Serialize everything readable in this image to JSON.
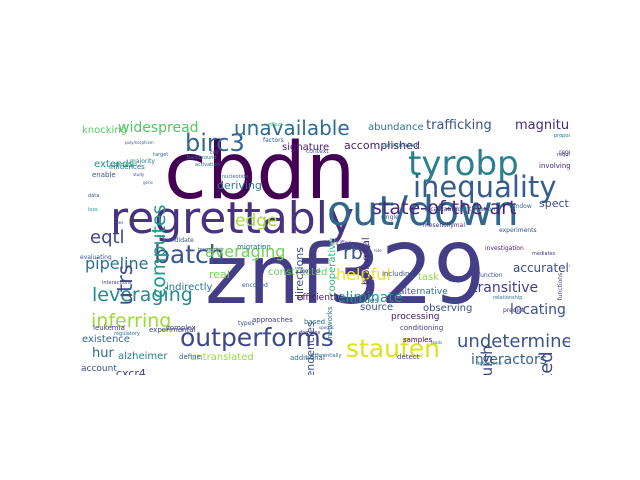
{
  "cloud": {
    "words": [
      {
        "t": "znf329",
        "c": "#433e85"
      },
      {
        "t": "cbdn",
        "c": "#440154"
      },
      {
        "t": "regrettably",
        "c": "#46327e"
      },
      {
        "t": "out/down",
        "c": "#30678d"
      },
      {
        "t": "tyrobp",
        "c": "#2b7f8e"
      },
      {
        "t": "inequality",
        "c": "#365c8d"
      },
      {
        "t": "batch",
        "c": "#39568c"
      },
      {
        "t": "outperforms",
        "c": "#3f4788"
      },
      {
        "t": "staufen",
        "c": "#dde318"
      },
      {
        "t": "state-of-the-art",
        "c": "#482777"
      },
      {
        "t": "unavailable",
        "c": "#2f6c8e"
      },
      {
        "t": "birc3",
        "c": "#31668e"
      },
      {
        "t": "leveraging",
        "c": "#238a8d"
      },
      {
        "t": "inferring",
        "c": "#9bd93c"
      },
      {
        "t": "pipeline",
        "c": "#2e6e8e"
      },
      {
        "t": "averaging",
        "c": "#73d055"
      },
      {
        "t": "undetermined",
        "c": "#3a538b"
      },
      {
        "t": "interactors",
        "c": "#33638d"
      },
      {
        "t": "simulated",
        "c": "#3e4989"
      },
      {
        "t": "utrs",
        "c": "#3d4e8a"
      },
      {
        "t": "eqtl",
        "c": "#404588"
      },
      {
        "t": "computes",
        "c": "#1f978b"
      },
      {
        "t": "widespread",
        "c": "#55c667"
      },
      {
        "t": "edge",
        "c": "#a5db36"
      },
      {
        "t": "rb1",
        "c": "#3b528b"
      },
      {
        "t": "helpful",
        "c": "#f1e51d"
      },
      {
        "t": "magnitude",
        "c": "#482979"
      },
      {
        "t": "eliminate",
        "c": "#1f988b"
      },
      {
        "t": "locating",
        "c": "#3b518b"
      },
      {
        "t": "transitive",
        "c": "#423f85"
      },
      {
        "t": "accurately",
        "c": "#3f4a8a"
      },
      {
        "t": "trafficking",
        "c": "#3b528b"
      },
      {
        "t": "accomplished",
        "c": "#482071"
      },
      {
        "t": "hur",
        "c": "#31688e"
      },
      {
        "t": "cxcr4",
        "c": "#414487"
      },
      {
        "t": "alzheimer",
        "c": "#25848e"
      },
      {
        "t": "untranslated",
        "c": "#9bd93c"
      },
      {
        "t": "distinguish",
        "c": "#3e4a89"
      },
      {
        "t": "signature",
        "c": "#481a6c"
      },
      {
        "t": "abundance",
        "c": "#2c728e"
      },
      {
        "t": "deriving",
        "c": "#2a788e"
      },
      {
        "t": "real",
        "c": "#7ad151"
      },
      {
        "t": "constructed",
        "c": "#6ccd5a"
      },
      {
        "t": "dependencies",
        "c": "#3b528b"
      },
      {
        "t": "task",
        "c": "#95d840"
      },
      {
        "t": "source",
        "c": "#39558c"
      },
      {
        "t": "observing",
        "c": "#3d4d8a"
      },
      {
        "t": "alternative",
        "c": "#2e6f8e"
      },
      {
        "t": "knocking",
        "c": "#5cc863"
      },
      {
        "t": "extends",
        "c": "#21918c"
      },
      {
        "t": "existence",
        "c": "#31678e"
      },
      {
        "t": "indirectly",
        "c": "#2b758e"
      },
      {
        "t": "experimental",
        "c": "#414487"
      },
      {
        "t": "directions",
        "c": "#3c4f8a"
      },
      {
        "t": "cooperative",
        "c": "#35b779"
      },
      {
        "t": "biological",
        "c": "#472d7b"
      },
      {
        "t": "spectrometry",
        "c": "#3e4c8a"
      },
      {
        "t": "efficiently",
        "c": "#481b6d"
      },
      {
        "t": "account",
        "c": "#3b518b"
      },
      {
        "t": "additional",
        "c": "#2d708e"
      },
      {
        "t": "processing",
        "c": "#481467"
      },
      {
        "t": "conditioning",
        "c": "#443983"
      },
      {
        "t": "samples",
        "c": "#440154"
      },
      {
        "t": "detect",
        "c": "#404588"
      },
      {
        "t": "differentially",
        "c": "#31688e"
      },
      {
        "t": "upregulated",
        "c": "#2c728e"
      },
      {
        "t": "localization",
        "c": "#46307e"
      },
      {
        "t": "identification",
        "c": "#2a778e"
      },
      {
        "t": "single",
        "c": "#3a548c"
      },
      {
        "t": "mesenchymal",
        "c": "#472e7c"
      },
      {
        "t": "involving",
        "c": "#482576"
      },
      {
        "t": "regulate",
        "c": "#3f4889"
      },
      {
        "t": "propose",
        "c": "#2d718e"
      },
      {
        "t": "required",
        "c": "#482878"
      },
      {
        "t": "identifies",
        "c": "#414287"
      },
      {
        "t": "networks",
        "c": "#2c738e"
      },
      {
        "t": "including",
        "c": "#3b518b"
      },
      {
        "t": "tissues",
        "c": "#31678e"
      },
      {
        "t": "based",
        "c": "#2f6b8e"
      },
      {
        "t": "leukemia",
        "c": "#453781"
      },
      {
        "t": "majority",
        "c": "#2a768e"
      },
      {
        "t": "enable",
        "c": "#3b528b"
      },
      {
        "t": "influences",
        "c": "#31688e"
      },
      {
        "t": "interactions",
        "c": "#453781"
      },
      {
        "t": "evaluating",
        "c": "#39568c"
      },
      {
        "t": "regulatory",
        "c": "#2d708e"
      },
      {
        "t": "migration",
        "c": "#2c728e"
      },
      {
        "t": "candidate",
        "c": "#3b518b"
      },
      {
        "t": "complex",
        "c": "#414487"
      },
      {
        "t": "define",
        "c": "#31678e"
      },
      {
        "t": "types",
        "c": "#39558c"
      },
      {
        "t": "approaches",
        "c": "#443983"
      },
      {
        "t": "encoded",
        "c": "#38588c"
      },
      {
        "t": "bound",
        "c": "#433e85"
      },
      {
        "t": "context",
        "c": "#3c4f8a"
      },
      {
        "t": "factors",
        "c": "#35608d"
      },
      {
        "t": "nucleotide",
        "c": "#2a788e"
      },
      {
        "t": "background",
        "c": "#2e6f8e"
      },
      {
        "t": "predict",
        "c": "#46307e"
      },
      {
        "t": "experiments",
        "c": "#3d4e8a"
      },
      {
        "t": "function",
        "c": "#3e4a89"
      },
      {
        "t": "investigation",
        "c": "#482475"
      },
      {
        "t": "determine",
        "c": "#2c728e"
      },
      {
        "t": "functions",
        "c": "#433e85"
      },
      {
        "t": "relationship",
        "c": "#2a778e"
      },
      {
        "t": "window",
        "c": "#31688e"
      },
      {
        "t": "mediates",
        "c": "#46327e"
      },
      {
        "t": "polymorphism",
        "c": "#39568c"
      },
      {
        "t": "depletion",
        "c": "#35b779"
      },
      {
        "t": "cell",
        "c": "#3b528b"
      },
      {
        "t": "activation",
        "c": "#2d718e"
      },
      {
        "t": "transcript",
        "c": "#39558c"
      },
      {
        "t": "domains",
        "c": "#433e85"
      },
      {
        "t": "specific",
        "c": "#3b518b"
      },
      {
        "t": "area",
        "c": "#2e6e8e"
      },
      {
        "t": "role",
        "c": "#3b528b"
      },
      {
        "t": "reads",
        "c": "#33638d"
      },
      {
        "t": "data",
        "c": "#39568c"
      },
      {
        "t": "loss",
        "c": "#1f978b"
      },
      {
        "t": "lines",
        "c": "#3f4889"
      },
      {
        "t": "target",
        "c": "#2c728e"
      },
      {
        "t": "study",
        "c": "#3e4c8a"
      },
      {
        "t": "gene",
        "c": "#2a788e"
      },
      {
        "t": "effect",
        "c": "#35b779"
      }
    ]
  }
}
